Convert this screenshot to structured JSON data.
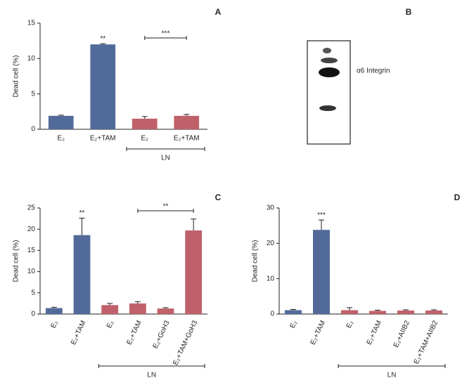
{
  "chart_data": [
    {
      "type": "bar",
      "panel_label": "A",
      "ylabel": "Dead cell (%)",
      "categories": [
        "E₂",
        "E₂+TAM",
        "E₂",
        "E₂+TAM"
      ],
      "values": [
        1.9,
        12.0,
        1.5,
        1.9
      ],
      "errors": [
        0.1,
        0.1,
        0.3,
        0.2
      ],
      "colors": [
        "#526a9a",
        "#526a9a",
        "#c0616a",
        "#c0616a"
      ],
      "significance": [
        null,
        "**",
        null,
        null
      ],
      "bracket": {
        "text": "***",
        "span": [
          2,
          3
        ]
      },
      "group": {
        "text": "LN",
        "span": [
          2,
          3
        ]
      },
      "ylim": [
        0,
        15
      ],
      "yticks": [
        0,
        5,
        10,
        15
      ]
    },
    {
      "type": "bar",
      "panel_label": "C",
      "ylabel": "Dead cell (%)",
      "categories": [
        "E₂",
        "E₂+TAM",
        "E₂",
        "E₂+TAM",
        "E₂+GoH3",
        "E₂+TAM+GoH3"
      ],
      "values": [
        1.4,
        18.6,
        2.1,
        2.5,
        1.3,
        19.7
      ],
      "errors": [
        0.2,
        4.0,
        0.4,
        0.4,
        0.2,
        2.7
      ],
      "colors": [
        "#526a9a",
        "#526a9a",
        "#c0616a",
        "#c0616a",
        "#c0616a",
        "#c0616a"
      ],
      "significance": [
        null,
        "**",
        null,
        null,
        null,
        null
      ],
      "bracket": {
        "text": "**",
        "span": [
          3,
          5
        ]
      },
      "group": {
        "text": "LN",
        "span": [
          2,
          5
        ]
      },
      "ylim": [
        0,
        25
      ],
      "yticks": [
        0,
        5,
        10,
        15,
        20,
        25
      ]
    },
    {
      "type": "bar",
      "panel_label": "D",
      "ylabel": "Dead cell (%)",
      "categories": [
        "E₂",
        "E₂+TAM",
        "E₂",
        "E₂+TAM",
        "E₂+AIIB2",
        "E₂+TAM+AIIB2"
      ],
      "values": [
        1.1,
        23.8,
        1.1,
        0.9,
        1.0,
        1.0
      ],
      "errors": [
        0.2,
        2.8,
        0.7,
        0.2,
        0.2,
        0.2
      ],
      "colors": [
        "#526a9a",
        "#526a9a",
        "#c0616a",
        "#c0616a",
        "#c0616a",
        "#c0616a"
      ],
      "significance": [
        null,
        "***",
        null,
        null,
        null,
        null
      ],
      "group": {
        "text": "LN",
        "span": [
          2,
          5
        ]
      },
      "ylim": [
        0,
        30
      ],
      "yticks": [
        0,
        10,
        20,
        30
      ]
    }
  ],
  "blot": {
    "panel_label": "B",
    "band_label": "α6 Integrin"
  }
}
